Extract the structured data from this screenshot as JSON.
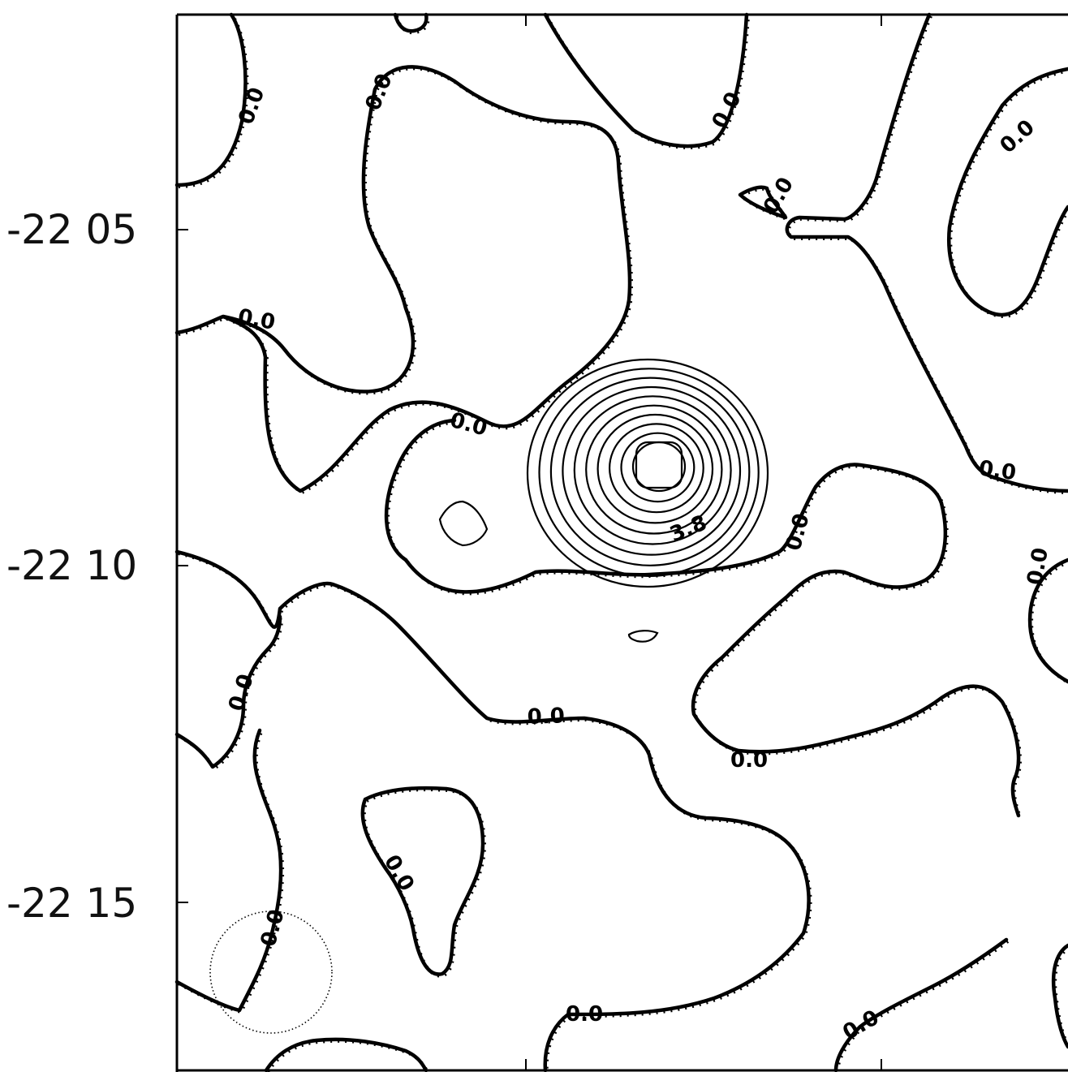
{
  "chart_data": {
    "type": "contour",
    "title": "",
    "xlabel": "",
    "ylabel": "",
    "y_tick_labels": [
      "-22 05",
      "-22 10",
      "-22 15"
    ],
    "contour_labels": {
      "zero": "0.0",
      "peak": "3.8"
    },
    "zero_contour_label_count": 20,
    "peak_level": 3.8,
    "positive_contour_count": 10,
    "zero_contour_style": "solid line with hatch ticks",
    "beam_marker": "dotted circle, lower-left",
    "grid": false,
    "legend": "none"
  }
}
